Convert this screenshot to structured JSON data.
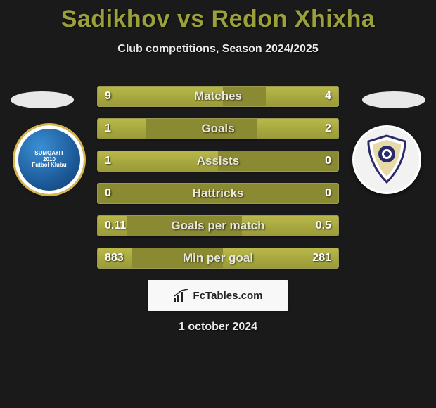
{
  "title": "Sadikhov vs Redon Xhixha",
  "subtitle": "Club competitions, Season 2024/2025",
  "footer_brand": "FcTables.com",
  "footer_date": "1 october 2024",
  "colors": {
    "title_color": "#9aa03a",
    "bar_bg": "#8a8a33",
    "bar_fill_top": "#b8b84a",
    "bar_fill_bottom": "#9a9a38",
    "page_bg": "#1a1a1a",
    "footer_box_bg": "#f8f8f8"
  },
  "crests": {
    "left": {
      "name": "Sumqayit FK",
      "primary": "#1d5b9a",
      "accent": "#d9b548"
    },
    "right": {
      "name": "Qarabag FK",
      "primary": "#2a2a6a",
      "accent": "#d9a23a"
    }
  },
  "stats": [
    {
      "label": "Matches",
      "left_display": "9",
      "right_display": "4",
      "left_pct": 52,
      "right_pct": 30
    },
    {
      "label": "Goals",
      "left_display": "1",
      "right_display": "2",
      "left_pct": 20,
      "right_pct": 34
    },
    {
      "label": "Assists",
      "left_display": "1",
      "right_display": "0",
      "left_pct": 50,
      "right_pct": 0
    },
    {
      "label": "Hattricks",
      "left_display": "0",
      "right_display": "0",
      "left_pct": 0,
      "right_pct": 0
    },
    {
      "label": "Goals per match",
      "left_display": "0.11",
      "right_display": "0.5",
      "left_pct": 12,
      "right_pct": 40
    },
    {
      "label": "Min per goal",
      "left_display": "883",
      "right_display": "281",
      "left_pct": 14,
      "right_pct": 48
    }
  ]
}
